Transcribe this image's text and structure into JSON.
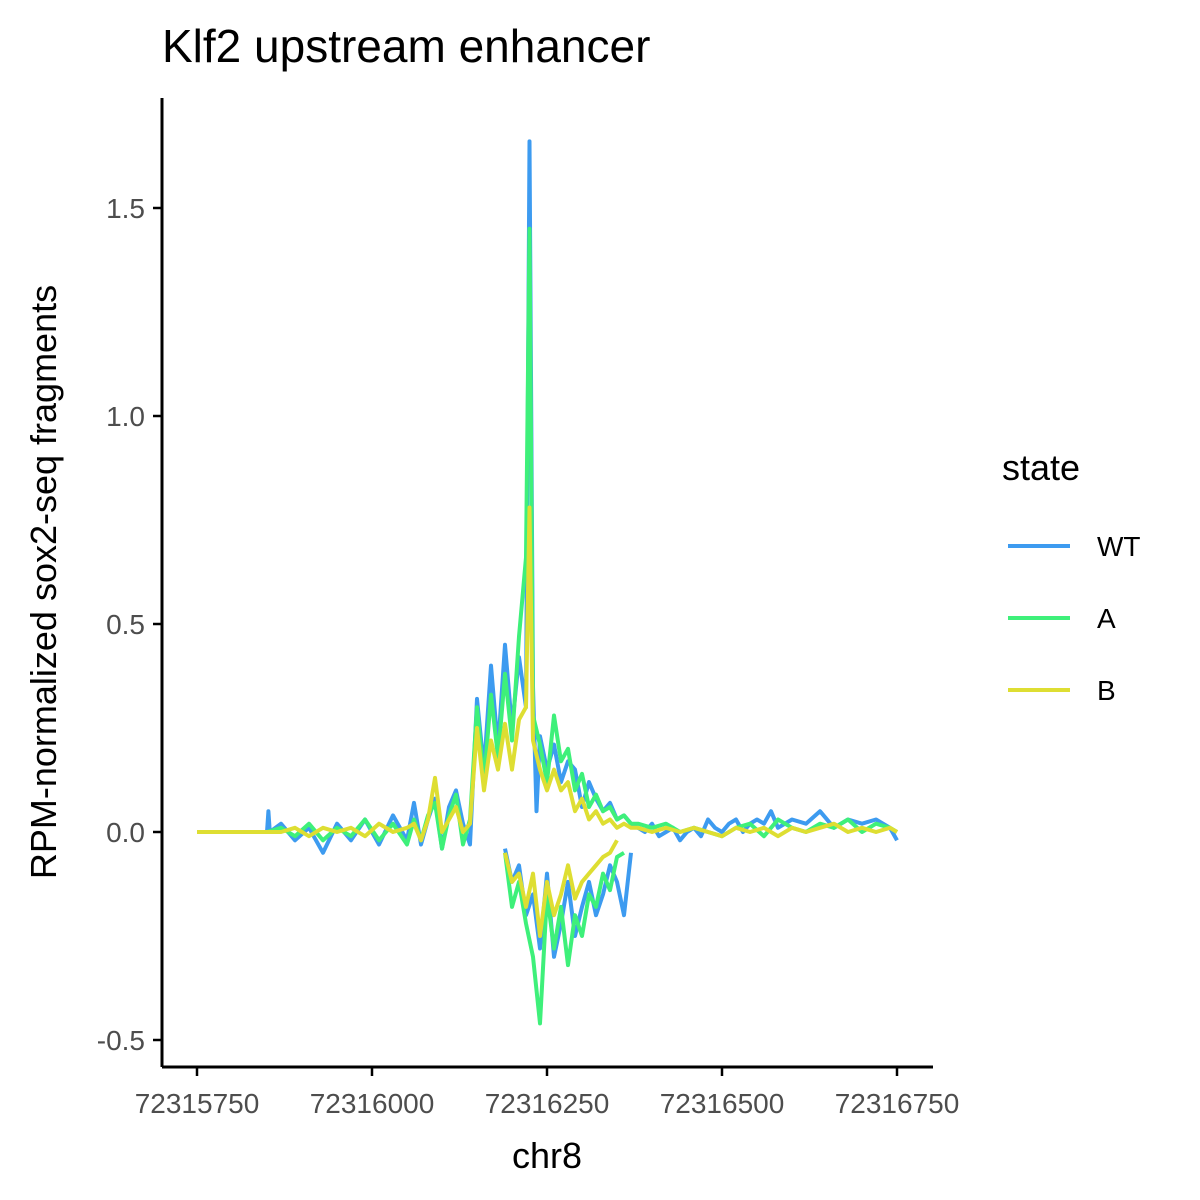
{
  "colors": {
    "WT": "#3d9bf0",
    "A": "#3ef07a",
    "B": "#dede32",
    "axis": "#000000",
    "tick_text": "#4d4d4d"
  },
  "chart_data": {
    "type": "line",
    "title": "Klf2 upstream enhancer",
    "xlabel": "chr8",
    "ylabel": "RPM-normalized sox2-seq fragments",
    "xlim": [
      72315740,
      72316760
    ],
    "ylim": [
      -0.52,
      1.77
    ],
    "x_ticks": [
      72315750,
      72316000,
      72316250,
      72316500,
      72316750
    ],
    "x_tick_labels": [
      "72315750",
      "72316000",
      "72316250",
      "72316500",
      "72316750"
    ],
    "y_ticks": [
      -0.5,
      0.0,
      0.5,
      1.0,
      1.5
    ],
    "y_tick_labels": [
      "-0.5",
      "0.0",
      "0.5",
      "1.0",
      "1.5"
    ],
    "grid": false,
    "legend": {
      "title": "state",
      "position": "right",
      "entries": [
        "WT",
        "A",
        "B"
      ]
    },
    "series": [
      {
        "name": "WT",
        "color": "#3d9bf0",
        "x": [
          72315750,
          72315850,
          72315852,
          72315854,
          72315870,
          72315890,
          72315910,
          72315930,
          72315950,
          72315970,
          72315990,
          72316010,
          72316030,
          72316050,
          72316060,
          72316070,
          72316080,
          72316090,
          72316100,
          72316110,
          72316120,
          72316130,
          72316140,
          72316150,
          72316160,
          72316170,
          72316180,
          72316190,
          72316200,
          72316210,
          72316220,
          72316225,
          72316230,
          72316235,
          72316240,
          72316250,
          72316260,
          72316270,
          72316280,
          72316290,
          72316300,
          72316310,
          72316320,
          72316330,
          72316340,
          72316350,
          72316360,
          72316370,
          72316380,
          72316390,
          72316400,
          72316410,
          72316420,
          72316430,
          72316440,
          72316450,
          72316460,
          72316470,
          72316480,
          72316490,
          72316500,
          72316510,
          72316520,
          72316530,
          72316540,
          72316550,
          72316560,
          72316570,
          72316580,
          72316600,
          72316620,
          72316640,
          72316660,
          72316680,
          72316700,
          72316720,
          72316740,
          72316750
        ],
        "y": [
          0.0,
          0.0,
          0.05,
          0.0,
          0.02,
          -0.02,
          0.01,
          -0.05,
          0.02,
          -0.02,
          0.03,
          -0.03,
          0.04,
          -0.02,
          0.07,
          -0.03,
          0.03,
          0.08,
          -0.04,
          0.06,
          0.1,
          0.02,
          -0.03,
          0.32,
          0.15,
          0.4,
          0.2,
          0.45,
          0.25,
          0.42,
          0.3,
          1.66,
          0.35,
          0.05,
          0.23,
          0.15,
          0.21,
          0.12,
          0.17,
          0.15,
          0.06,
          0.12,
          0.08,
          0.05,
          0.07,
          0.03,
          0.04,
          0.02,
          0.01,
          0.0,
          0.02,
          -0.01,
          0.0,
          0.01,
          -0.02,
          0.0,
          0.01,
          -0.01,
          0.03,
          0.01,
          0.0,
          0.02,
          0.03,
          0.0,
          0.02,
          0.03,
          0.02,
          0.05,
          0.01,
          0.03,
          0.02,
          0.05,
          0.01,
          0.03,
          0.02,
          0.03,
          0.01,
          -0.02
        ]
      },
      {
        "name": "WT",
        "color": "#3d9bf0",
        "x": [
          72316190,
          72316200,
          72316210,
          72316220,
          72316230,
          72316240,
          72316250,
          72316260,
          72316270,
          72316280,
          72316290,
          72316300,
          72316310,
          72316320,
          72316330,
          72316340,
          72316350,
          72316360,
          72316370
        ],
        "y": [
          -0.04,
          -0.12,
          -0.08,
          -0.2,
          -0.15,
          -0.28,
          -0.1,
          -0.3,
          -0.22,
          -0.12,
          -0.25,
          -0.18,
          -0.12,
          -0.2,
          -0.15,
          -0.08,
          -0.12,
          -0.2,
          -0.05
        ]
      },
      {
        "name": "A",
        "color": "#3ef07a",
        "x": [
          72315750,
          72315850,
          72315870,
          72315890,
          72315910,
          72315930,
          72315950,
          72315970,
          72315990,
          72316010,
          72316030,
          72316050,
          72316060,
          72316070,
          72316080,
          72316090,
          72316100,
          72316110,
          72316120,
          72316130,
          72316140,
          72316150,
          72316160,
          72316170,
          72316180,
          72316190,
          72316200,
          72316210,
          72316220,
          72316225,
          72316230,
          72316240,
          72316250,
          72316260,
          72316270,
          72316280,
          72316290,
          72316300,
          72316310,
          72316320,
          72316330,
          72316340,
          72316350,
          72316360,
          72316370,
          72316380,
          72316400,
          72316420,
          72316440,
          72316460,
          72316480,
          72316500,
          72316520,
          72316540,
          72316560,
          72316580,
          72316600,
          72316620,
          72316640,
          72316660,
          72316680,
          72316700,
          72316720,
          72316740,
          72316750
        ],
        "y": [
          0.0,
          0.0,
          0.01,
          -0.01,
          0.02,
          -0.02,
          0.01,
          -0.01,
          0.03,
          -0.02,
          0.02,
          -0.03,
          0.03,
          -0.02,
          0.04,
          0.07,
          -0.04,
          0.04,
          0.09,
          -0.03,
          0.03,
          0.3,
          0.12,
          0.33,
          0.18,
          0.38,
          0.22,
          0.47,
          0.66,
          1.45,
          0.28,
          0.21,
          0.12,
          0.28,
          0.17,
          0.2,
          0.1,
          0.14,
          0.06,
          0.09,
          0.05,
          0.06,
          0.03,
          0.04,
          0.02,
          0.02,
          0.01,
          0.02,
          0.0,
          0.01,
          0.0,
          -0.01,
          0.01,
          0.02,
          -0.01,
          0.03,
          0.01,
          0.0,
          0.02,
          0.01,
          0.03,
          0.0,
          0.02,
          0.01,
          0.0
        ]
      },
      {
        "name": "A",
        "color": "#3ef07a",
        "x": [
          72316190,
          72316200,
          72316210,
          72316220,
          72316230,
          72316240,
          72316250,
          72316260,
          72316270,
          72316280,
          72316290,
          72316300,
          72316310,
          72316320,
          72316330,
          72316340,
          72316350,
          72316360
        ],
        "y": [
          -0.05,
          -0.18,
          -0.12,
          -0.22,
          -0.3,
          -0.46,
          -0.15,
          -0.28,
          -0.18,
          -0.32,
          -0.2,
          -0.25,
          -0.15,
          -0.18,
          -0.1,
          -0.14,
          -0.06,
          -0.05
        ]
      },
      {
        "name": "B",
        "color": "#dede32",
        "x": [
          72315750,
          72315850,
          72315870,
          72315890,
          72315910,
          72315930,
          72315950,
          72315970,
          72315990,
          72316010,
          72316030,
          72316050,
          72316060,
          72316070,
          72316080,
          72316090,
          72316100,
          72316110,
          72316120,
          72316130,
          72316140,
          72316150,
          72316160,
          72316170,
          72316180,
          72316190,
          72316200,
          72316210,
          72316220,
          72316225,
          72316230,
          72316240,
          72316250,
          72316260,
          72316270,
          72316280,
          72316290,
          72316300,
          72316310,
          72316320,
          72316330,
          72316340,
          72316350,
          72316360,
          72316370,
          72316380,
          72316400,
          72316420,
          72316440,
          72316460,
          72316480,
          72316500,
          72316520,
          72316540,
          72316560,
          72316580,
          72316600,
          72316620,
          72316640,
          72316660,
          72316680,
          72316700,
          72316720,
          72316740,
          72316750
        ],
        "y": [
          0.0,
          0.0,
          0.0,
          0.01,
          -0.01,
          0.01,
          0.0,
          0.01,
          -0.01,
          0.02,
          0.0,
          0.01,
          0.02,
          -0.02,
          0.03,
          0.13,
          0.0,
          0.03,
          0.06,
          0.0,
          0.02,
          0.25,
          0.1,
          0.22,
          0.15,
          0.26,
          0.15,
          0.27,
          0.3,
          0.78,
          0.22,
          0.15,
          0.1,
          0.15,
          0.1,
          0.12,
          0.05,
          0.08,
          0.03,
          0.05,
          0.02,
          0.03,
          0.01,
          0.02,
          0.01,
          0.01,
          0.0,
          0.01,
          0.0,
          0.01,
          0.0,
          -0.01,
          0.01,
          0.0,
          0.01,
          -0.01,
          0.01,
          0.0,
          0.01,
          0.02,
          0.0,
          0.01,
          0.0,
          0.01,
          0.0
        ]
      },
      {
        "name": "B",
        "color": "#dede32",
        "x": [
          72316190,
          72316200,
          72316210,
          72316220,
          72316230,
          72316240,
          72316250,
          72316260,
          72316270,
          72316280,
          72316290,
          72316300,
          72316310,
          72316320,
          72316330,
          72316340,
          72316350
        ],
        "y": [
          -0.05,
          -0.12,
          -0.1,
          -0.18,
          -0.1,
          -0.25,
          -0.12,
          -0.2,
          -0.15,
          -0.08,
          -0.16,
          -0.12,
          -0.1,
          -0.08,
          -0.06,
          -0.05,
          -0.02
        ]
      }
    ]
  }
}
